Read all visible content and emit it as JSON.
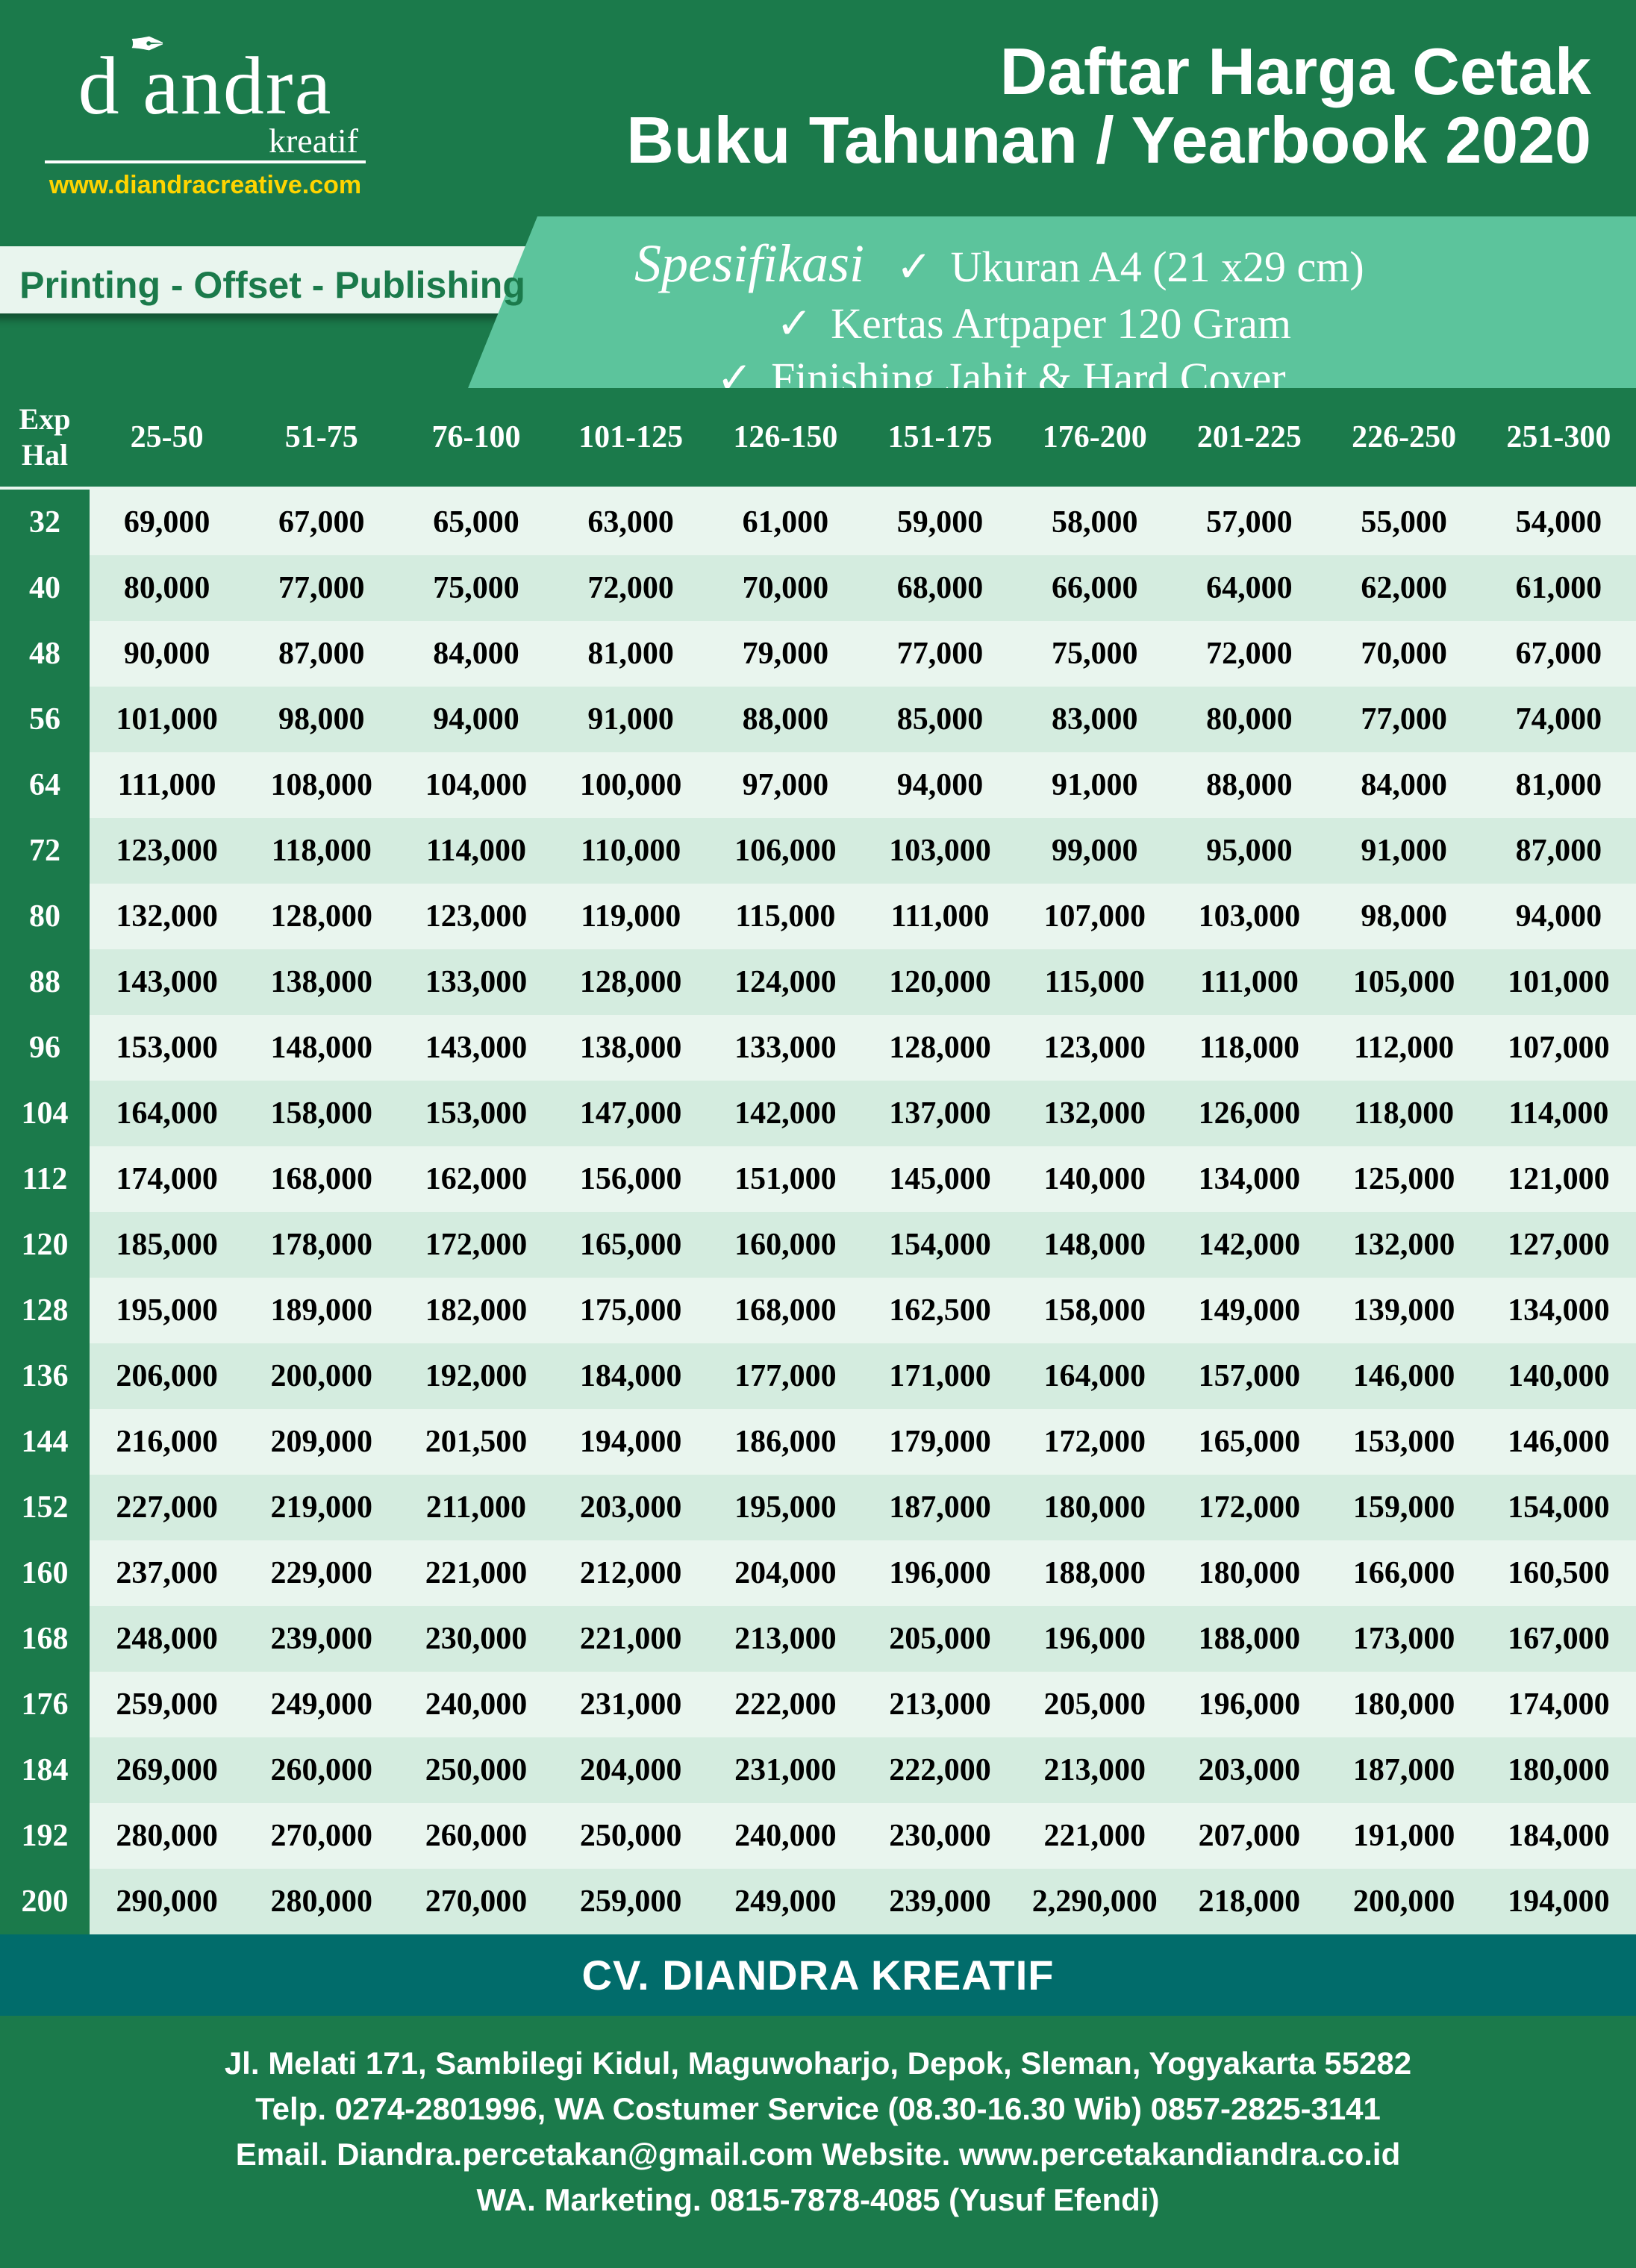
{
  "colors": {
    "brand_green": "#1b7a4b",
    "mint": "#5cc49c",
    "row_even": "#e9f5ee",
    "row_odd": "#d4ecdf",
    "teal": "#016c6b",
    "accent_yellow": "#ffd400",
    "white": "#ffffff",
    "black": "#000000"
  },
  "logo": {
    "text": "d  andra",
    "subscript": "kreatif",
    "url": "www.diandracreative.com",
    "feather_glyph": "✒"
  },
  "title": {
    "line1": "Daftar Harga Cetak",
    "line2": "Buku Tahunan / Yearbook 2020"
  },
  "tagline": "Printing - Offset - Publishing",
  "spec": {
    "title": "Spesifikasi",
    "items": [
      "Ukuran A4 (21 x29 cm)",
      "Kertas Artpaper 120 Gram",
      "Finishing Jahit & Hard Cover"
    ],
    "check_glyph": "✓"
  },
  "table": {
    "type": "table",
    "row_header_line1": "Exp",
    "row_header_line2": "Hal",
    "columns": [
      "25-50",
      "51-75",
      "76-100",
      "101-125",
      "126-150",
      "151-175",
      "176-200",
      "201-225",
      "226-250",
      "251-300"
    ],
    "row_labels": [
      "32",
      "40",
      "48",
      "56",
      "64",
      "72",
      "80",
      "88",
      "96",
      "104",
      "112",
      "120",
      "128",
      "136",
      "144",
      "152",
      "160",
      "168",
      "176",
      "184",
      "192",
      "200"
    ],
    "rows": [
      [
        "69,000",
        "67,000",
        "65,000",
        "63,000",
        "61,000",
        "59,000",
        "58,000",
        "57,000",
        "55,000",
        "54,000"
      ],
      [
        "80,000",
        "77,000",
        "75,000",
        "72,000",
        "70,000",
        "68,000",
        "66,000",
        "64,000",
        "62,000",
        "61,000"
      ],
      [
        "90,000",
        "87,000",
        "84,000",
        "81,000",
        "79,000",
        "77,000",
        "75,000",
        "72,000",
        "70,000",
        "67,000"
      ],
      [
        "101,000",
        "98,000",
        "94,000",
        "91,000",
        "88,000",
        "85,000",
        "83,000",
        "80,000",
        "77,000",
        "74,000"
      ],
      [
        "111,000",
        "108,000",
        "104,000",
        "100,000",
        "97,000",
        "94,000",
        "91,000",
        "88,000",
        "84,000",
        "81,000"
      ],
      [
        "123,000",
        "118,000",
        "114,000",
        "110,000",
        "106,000",
        "103,000",
        "99,000",
        "95,000",
        "91,000",
        "87,000"
      ],
      [
        "132,000",
        "128,000",
        "123,000",
        "119,000",
        "115,000",
        "111,000",
        "107,000",
        "103,000",
        "98,000",
        "94,000"
      ],
      [
        "143,000",
        "138,000",
        "133,000",
        "128,000",
        "124,000",
        "120,000",
        "115,000",
        "111,000",
        "105,000",
        "101,000"
      ],
      [
        "153,000",
        "148,000",
        "143,000",
        "138,000",
        "133,000",
        "128,000",
        "123,000",
        "118,000",
        "112,000",
        "107,000"
      ],
      [
        "164,000",
        "158,000",
        "153,000",
        "147,000",
        "142,000",
        "137,000",
        "132,000",
        "126,000",
        "118,000",
        "114,000"
      ],
      [
        "174,000",
        "168,000",
        "162,000",
        "156,000",
        "151,000",
        "145,000",
        "140,000",
        "134,000",
        "125,000",
        "121,000"
      ],
      [
        "185,000",
        "178,000",
        "172,000",
        "165,000",
        "160,000",
        "154,000",
        "148,000",
        "142,000",
        "132,000",
        "127,000"
      ],
      [
        "195,000",
        "189,000",
        "182,000",
        "175,000",
        "168,000",
        "162,500",
        "158,000",
        "149,000",
        "139,000",
        "134,000"
      ],
      [
        "206,000",
        "200,000",
        "192,000",
        "184,000",
        "177,000",
        "171,000",
        "164,000",
        "157,000",
        "146,000",
        "140,000"
      ],
      [
        "216,000",
        "209,000",
        "201,500",
        "194,000",
        "186,000",
        "179,000",
        "172,000",
        "165,000",
        "153,000",
        "146,000"
      ],
      [
        "227,000",
        "219,000",
        "211,000",
        "203,000",
        "195,000",
        "187,000",
        "180,000",
        "172,000",
        "159,000",
        "154,000"
      ],
      [
        "237,000",
        "229,000",
        "221,000",
        "212,000",
        "204,000",
        "196,000",
        "188,000",
        "180,000",
        "166,000",
        "160,500"
      ],
      [
        "248,000",
        "239,000",
        "230,000",
        "221,000",
        "213,000",
        "205,000",
        "196,000",
        "188,000",
        "173,000",
        "167,000"
      ],
      [
        "259,000",
        "249,000",
        "240,000",
        "231,000",
        "222,000",
        "213,000",
        "205,000",
        "196,000",
        "180,000",
        "174,000"
      ],
      [
        "269,000",
        "260,000",
        "250,000",
        "204,000",
        "231,000",
        "222,000",
        "213,000",
        "203,000",
        "187,000",
        "180,000"
      ],
      [
        "280,000",
        "270,000",
        "260,000",
        "250,000",
        "240,000",
        "230,000",
        "221,000",
        "207,000",
        "191,000",
        "184,000"
      ],
      [
        "290,000",
        "280,000",
        "270,000",
        "259,000",
        "249,000",
        "239,000",
        "2,290,000",
        "218,000",
        "200,000",
        "194,000"
      ]
    ],
    "header_fontsize_pt": 32,
    "cell_fontsize_pt": 32,
    "row_stripe_colors": [
      "#e9f5ee",
      "#d4ecdf"
    ]
  },
  "footer": {
    "company": "CV. DIANDRA KREATIF",
    "lines": [
      "Jl. Melati 171, Sambilegi Kidul, Maguwoharjo, Depok, Sleman, Yogyakarta 55282",
      "Telp. 0274-2801996, WA Costumer Service (08.30-16.30 Wib) 0857-2825-3141",
      "Email. Diandra.percetakan@gmail.com Website. www.percetakandiandra.co.id",
      "WA. Marketing. 0815-7878-4085 (Yusuf Efendi)"
    ]
  }
}
